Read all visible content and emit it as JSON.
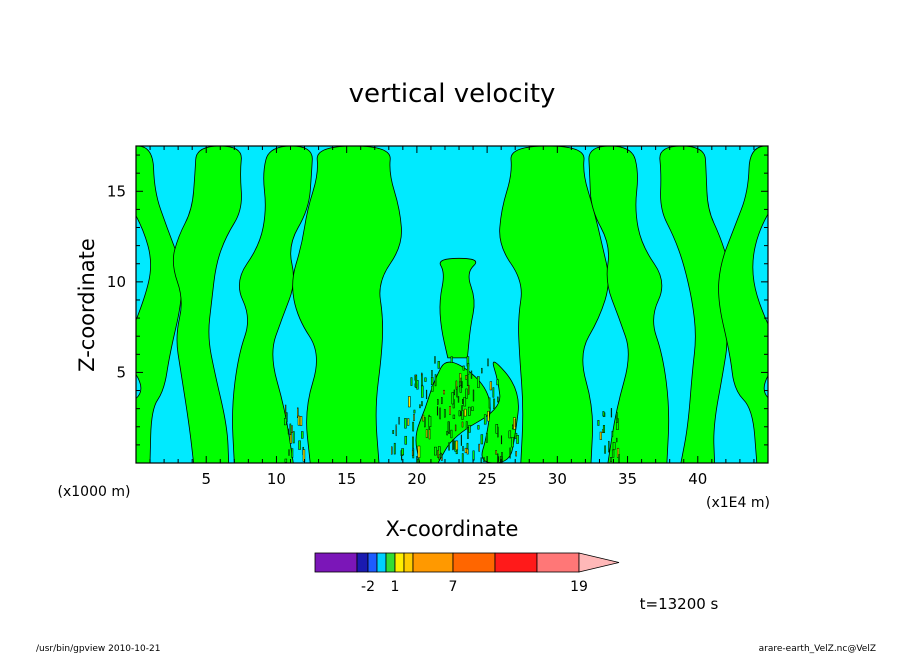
{
  "chart_data": {
    "type": "heatmap",
    "title": "vertical velocity",
    "xlabel": "X-coordinate",
    "ylabel": "Z-coordinate",
    "x_unit": "(x1E4 m)",
    "y_unit": "(x1000 m)",
    "xlim": [
      0,
      45
    ],
    "ylim": [
      0,
      17.5
    ],
    "x_ticks": [
      "5",
      "10",
      "15",
      "20",
      "25",
      "30",
      "35",
      "40"
    ],
    "y_ticks": [
      "5",
      "10",
      "15"
    ],
    "x_tick_values": [
      5,
      10,
      15,
      20,
      25,
      30,
      35,
      40
    ],
    "y_tick_values": [
      5,
      10,
      15
    ],
    "colorbar": {
      "labels": [
        {
          "text": "-2",
          "index": 2
        },
        {
          "text": "1",
          "index": 5
        },
        {
          "text": "7",
          "index": 8
        },
        {
          "text": "19",
          "index": 11
        }
      ],
      "colors": [
        "#7b16b8",
        "#1a1ab0",
        "#1e5cff",
        "#00d0ff",
        "#33dd33",
        "#ffee00",
        "#ffcc00",
        "#ff9900",
        "#ff6600",
        "#ff1a1a",
        "#ff7777",
        "#ffb8b8"
      ]
    },
    "colors": {
      "positive_region": "#00ff00",
      "negative_region": "#00eaff",
      "contour": "#000000",
      "strong_updraft": "#ffee00"
    },
    "time_label": "t=13200 s"
  },
  "footer": {
    "left": "/usr/bin/gpview   2010-10-21",
    "right": "arare-earth_VelZ.nc@VelZ"
  }
}
